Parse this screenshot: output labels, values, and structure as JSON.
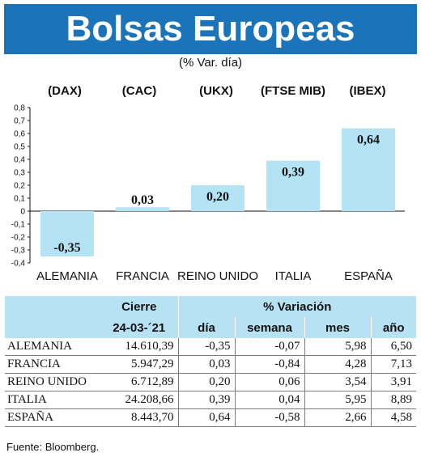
{
  "title": "Bolsas Europeas",
  "subtitle": "(% Var. día)",
  "indices": [
    "(DAX)",
    "(CAC)",
    "(UKX)",
    "(FTSE MIB)",
    "(IBEX)"
  ],
  "chart_data": {
    "type": "bar",
    "categories": [
      "ALEMANIA",
      "FRANCIA",
      "REINO UNIDO",
      "ITALIA",
      "ESPAÑA"
    ],
    "values": [
      -0.35,
      0.03,
      0.2,
      0.39,
      0.64
    ],
    "value_labels": [
      "-0,35",
      "0,03",
      "0,20",
      "0,39",
      "0,64"
    ],
    "ylim": [
      -0.4,
      0.8
    ],
    "yticks": [
      "0,8",
      "0,7",
      "0,6",
      "0,5",
      "0,4",
      "0,3",
      "0,2",
      "0,1",
      "0",
      "-0,1",
      "-0,2",
      "-0,3",
      "-0,4"
    ],
    "bar_color": "#b3e3f5",
    "title": "",
    "xlabel": "",
    "ylabel": ""
  },
  "table": {
    "header_cierre": "Cierre",
    "header_variacion": "% Variación",
    "date": "24-03-´21",
    "sub_headers": [
      "día",
      "semana",
      "mes",
      "año"
    ],
    "rows": [
      {
        "name": "ALEMANIA",
        "cierre": "14.610,39",
        "dia": "-0,35",
        "semana": "-0,07",
        "mes": "5,98",
        "anio": "6,50"
      },
      {
        "name": "FRANCIA",
        "cierre": "5.947,29",
        "dia": "0,03",
        "semana": "-0,84",
        "mes": "4,28",
        "anio": "7,13"
      },
      {
        "name": "REINO UNIDO",
        "cierre": "6.712,89",
        "dia": "0,20",
        "semana": "0,06",
        "mes": "3,54",
        "anio": "3,91"
      },
      {
        "name": "ITALIA",
        "cierre": "24.208,66",
        "dia": "0,39",
        "semana": "0,04",
        "mes": "5,95",
        "anio": "8,89"
      },
      {
        "name": "ESPAÑA",
        "cierre": "8.443,70",
        "dia": "0,64",
        "semana": "-0,58",
        "mes": "2,66",
        "anio": "4,58"
      }
    ]
  },
  "source": "Fuente: Bloomberg.",
  "colors": {
    "title_bg": "#1b74b9",
    "header_bg": "#b7e2f3"
  }
}
